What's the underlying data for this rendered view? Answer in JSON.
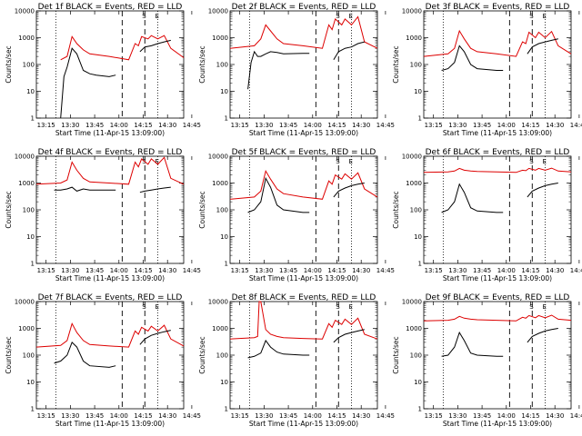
{
  "colors": {
    "events": "#000000",
    "lld": "#dd0000",
    "axis": "#000000"
  },
  "common": {
    "xlabel": "Start Time (11-Apr-15 13:09:00)",
    "ylabel": "Counts/sec",
    "x_ticks": [
      "13:15",
      "13:30",
      "13:45",
      "14:00",
      "14:15",
      "14:30",
      "14:45"
    ],
    "y_ticks": [
      "1",
      "10",
      "100",
      "1000",
      "10000"
    ]
  },
  "chart_data": [
    {
      "type": "line",
      "title": "Det 1f BLACK = Events, RED = LLD",
      "xlabel": "Start Time (11-Apr-15 13:09:00)",
      "ylabel": "Counts/sec",
      "xlim_min": [
        9,
        100
      ],
      "ylim": [
        1,
        10000
      ],
      "y_scale": "log",
      "grid": false,
      "legend": "none",
      "series": [
        {
          "name": "Events",
          "x": [
            9,
            24,
            26,
            28,
            31,
            34,
            38,
            42,
            46,
            54,
            58
          ],
          "y": [
            null,
            1,
            35,
            80,
            400,
            250,
            60,
            45,
            40,
            35,
            40
          ]
        },
        {
          "name": "LLD",
          "x": [
            9,
            24,
            28,
            31,
            34,
            38,
            42,
            54,
            66,
            70,
            72,
            74,
            78,
            80,
            84,
            88,
            92,
            100
          ],
          "y": [
            null,
            150,
            200,
            1100,
            600,
            350,
            250,
            200,
            150,
            600,
            500,
            1100,
            900,
            1200,
            900,
            1200,
            400,
            180
          ]
        },
        {
          "name": "Events",
          "x": [
            73,
            76,
            80,
            84,
            88,
            92
          ],
          "y": [
            300,
            450,
            500,
            600,
            700,
            800
          ]
        }
      ],
      "markers": {
        "dashed": [
          62,
          76
        ],
        "dotted": [
          21,
          84
        ],
        "labels": [
          "S",
          "E"
        ]
      }
    },
    {
      "type": "line",
      "title": "Det 2f BLACK = Events, RED = LLD",
      "xlabel": "Start Time (11-Apr-15 13:09:00)",
      "ylabel": "Counts/sec",
      "xlim_min": [
        9,
        100
      ],
      "ylim": [
        1,
        10000
      ],
      "y_scale": "log",
      "grid": false,
      "legend": "none",
      "series": [
        {
          "name": "Events",
          "x": [
            20,
            22,
            24,
            26,
            28,
            31,
            34,
            38,
            42,
            54,
            58
          ],
          "y": [
            12,
            120,
            300,
            200,
            200,
            250,
            300,
            280,
            250,
            260,
            260
          ]
        },
        {
          "name": "LLD",
          "x": [
            9,
            24,
            28,
            31,
            34,
            38,
            42,
            54,
            66,
            70,
            72,
            74,
            78,
            80,
            84,
            88,
            92,
            100
          ],
          "y": [
            400,
            500,
            900,
            3000,
            1800,
            900,
            600,
            500,
            400,
            3000,
            2000,
            5000,
            3000,
            5000,
            3000,
            6000,
            700,
            400
          ]
        },
        {
          "name": "Events",
          "x": [
            73,
            76,
            80,
            84,
            88,
            92
          ],
          "y": [
            150,
            300,
            400,
            450,
            600,
            700
          ]
        }
      ],
      "markers": {
        "dashed": [
          62,
          76
        ],
        "dotted": [
          21,
          84
        ],
        "labels": [
          "S",
          "E"
        ]
      }
    },
    {
      "type": "line",
      "title": "Det 3f BLACK = Events, RED = LLD",
      "xlabel": "Start Time (11-Apr-15 13:09:00)",
      "ylabel": "Counts/sec",
      "xlim_min": [
        9,
        100
      ],
      "ylim": [
        1,
        10000
      ],
      "y_scale": "log",
      "grid": false,
      "legend": "none",
      "series": [
        {
          "name": "Events",
          "x": [
            20,
            24,
            28,
            31,
            34,
            38,
            42,
            54,
            58
          ],
          "y": [
            60,
            70,
            120,
            500,
            300,
            100,
            70,
            60,
            60
          ]
        },
        {
          "name": "LLD",
          "x": [
            9,
            24,
            28,
            31,
            34,
            38,
            42,
            54,
            66,
            70,
            72,
            74,
            78,
            80,
            84,
            88,
            92,
            100
          ],
          "y": [
            200,
            250,
            400,
            1800,
            900,
            400,
            300,
            250,
            200,
            700,
            600,
            1600,
            1000,
            1600,
            1000,
            1700,
            500,
            250
          ]
        },
        {
          "name": "Events",
          "x": [
            73,
            76,
            80,
            84,
            88,
            92
          ],
          "y": [
            250,
            450,
            600,
            700,
            800,
            900
          ]
        }
      ],
      "markers": {
        "dashed": [
          62,
          76
        ],
        "dotted": [
          21,
          84
        ],
        "labels": [
          "S",
          "E"
        ]
      }
    },
    {
      "type": "line",
      "title": "Det 4f BLACK = Events, RED = LLD",
      "xlabel": "Start Time (11-Apr-15 13:09:00)",
      "ylabel": "Counts/sec",
      "xlim_min": [
        9,
        100
      ],
      "ylim": [
        1,
        10000
      ],
      "y_scale": "log",
      "grid": false,
      "legend": "none",
      "series": [
        {
          "name": "Events",
          "x": [
            20,
            24,
            28,
            31,
            34,
            38,
            42,
            54,
            58
          ],
          "y": [
            550,
            550,
            600,
            700,
            500,
            600,
            550,
            550,
            550
          ]
        },
        {
          "name": "LLD",
          "x": [
            9,
            24,
            28,
            31,
            34,
            38,
            42,
            54,
            66,
            70,
            72,
            74,
            78,
            80,
            84,
            88,
            92,
            100
          ],
          "y": [
            900,
            1000,
            1300,
            6000,
            3000,
            1500,
            1100,
            1000,
            900,
            6000,
            4000,
            8000,
            5000,
            8000,
            5000,
            9000,
            1500,
            900
          ]
        },
        {
          "name": "Events",
          "x": [
            73,
            76,
            80,
            84,
            88,
            92
          ],
          "y": [
            450,
            500,
            550,
            600,
            650,
            700
          ]
        }
      ],
      "markers": {
        "dashed": [
          62,
          76
        ],
        "dotted": [
          21,
          84
        ],
        "labels": [
          "S",
          "E"
        ]
      }
    },
    {
      "type": "line",
      "title": "Det 5f BLACK = Events, RED = LLD",
      "xlabel": "Start Time (11-Apr-15 13:09:00)",
      "ylabel": "Counts/sec",
      "xlim_min": [
        9,
        100
      ],
      "ylim": [
        1,
        10000
      ],
      "y_scale": "log",
      "grid": false,
      "legend": "none",
      "series": [
        {
          "name": "Events",
          "x": [
            20,
            24,
            28,
            31,
            34,
            38,
            42,
            54,
            58
          ],
          "y": [
            80,
            100,
            200,
            1500,
            700,
            150,
            100,
            80,
            80
          ]
        },
        {
          "name": "LLD",
          "x": [
            9,
            24,
            28,
            31,
            34,
            38,
            42,
            54,
            66,
            70,
            72,
            74,
            78,
            80,
            84,
            88,
            92,
            100
          ],
          "y": [
            250,
            300,
            500,
            2800,
            1400,
            600,
            400,
            300,
            250,
            1200,
            900,
            2000,
            1400,
            2200,
            1400,
            2400,
            600,
            300
          ]
        },
        {
          "name": "Events",
          "x": [
            73,
            76,
            80,
            84,
            88,
            92
          ],
          "y": [
            300,
            500,
            650,
            800,
            900,
            1000
          ]
        }
      ],
      "markers": {
        "dashed": [
          62,
          76
        ],
        "dotted": [
          21,
          84
        ],
        "labels": [
          "S",
          "E"
        ]
      }
    },
    {
      "type": "line",
      "title": "Det 6f BLACK = Events, RED = LLD",
      "xlabel": "Start Time (11-Apr-15 13:09:00)",
      "ylabel": "Counts/sec",
      "xlim_min": [
        9,
        100
      ],
      "ylim": [
        1,
        10000
      ],
      "y_scale": "log",
      "grid": false,
      "legend": "none",
      "series": [
        {
          "name": "Events",
          "x": [
            20,
            24,
            28,
            31,
            34,
            38,
            42,
            54,
            58
          ],
          "y": [
            80,
            100,
            200,
            900,
            450,
            120,
            90,
            80,
            80
          ]
        },
        {
          "name": "LLD",
          "x": [
            9,
            24,
            28,
            31,
            34,
            38,
            42,
            54,
            66,
            70,
            72,
            74,
            78,
            80,
            84,
            88,
            92,
            100
          ],
          "y": [
            2500,
            2600,
            2800,
            3500,
            3000,
            2800,
            2700,
            2600,
            2500,
            3000,
            2900,
            3500,
            3000,
            3500,
            3000,
            3600,
            2800,
            2600
          ]
        },
        {
          "name": "Events",
          "x": [
            73,
            76,
            80,
            84,
            88,
            92
          ],
          "y": [
            300,
            500,
            650,
            800,
            900,
            1000
          ]
        }
      ],
      "markers": {
        "dashed": [
          62,
          76
        ],
        "dotted": [
          21,
          84
        ],
        "labels": [
          "S",
          "E"
        ]
      }
    },
    {
      "type": "line",
      "title": "Det 7f BLACK = Events, RED = LLD",
      "xlabel": "Start Time (11-Apr-15 13:09:00)",
      "ylabel": "Counts/sec",
      "xlim_min": [
        9,
        100
      ],
      "ylim": [
        1,
        10000
      ],
      "y_scale": "log",
      "grid": false,
      "legend": "none",
      "series": [
        {
          "name": "Events",
          "x": [
            20,
            24,
            28,
            31,
            34,
            38,
            42,
            54,
            58
          ],
          "y": [
            50,
            60,
            100,
            300,
            200,
            60,
            40,
            35,
            40
          ]
        },
        {
          "name": "LLD",
          "x": [
            9,
            24,
            28,
            31,
            34,
            38,
            42,
            54,
            66,
            70,
            72,
            74,
            78,
            80,
            84,
            88,
            92,
            100
          ],
          "y": [
            200,
            230,
            350,
            1500,
            700,
            350,
            250,
            220,
            200,
            800,
            600,
            1100,
            800,
            1200,
            800,
            1300,
            400,
            220
          ]
        },
        {
          "name": "Events",
          "x": [
            73,
            76,
            80,
            84,
            88,
            92
          ],
          "y": [
            250,
            400,
            550,
            650,
            750,
            850
          ]
        }
      ],
      "markers": {
        "dashed": [
          62,
          76
        ],
        "dotted": [
          21,
          84
        ],
        "labels": [
          "S",
          "E"
        ]
      }
    },
    {
      "type": "line",
      "title": "Det 8f BLACK = Events, RED = LLD",
      "xlabel": "Start Time (11-Apr-15 13:09:00)",
      "ylabel": "Counts/sec",
      "xlim_min": [
        9,
        100
      ],
      "ylim": [
        1,
        10000
      ],
      "y_scale": "log",
      "grid": false,
      "legend": "none",
      "series": [
        {
          "name": "Events",
          "x": [
            20,
            24,
            28,
            31,
            34,
            38,
            42,
            54,
            58
          ],
          "y": [
            80,
            90,
            120,
            350,
            200,
            130,
            110,
            100,
            100
          ]
        },
        {
          "name": "LLD",
          "x": [
            9,
            24,
            26,
            27,
            28,
            31,
            34,
            38,
            42,
            54,
            66,
            70,
            72,
            74,
            78,
            80,
            84,
            88,
            92,
            100
          ],
          "y": [
            400,
            450,
            500,
            10000,
            10000,
            900,
            600,
            500,
            450,
            420,
            400,
            1500,
            1100,
            2000,
            1400,
            2200,
            1400,
            2400,
            600,
            400
          ]
        },
        {
          "name": "Events",
          "x": [
            73,
            76,
            80,
            84,
            88,
            92
          ],
          "y": [
            300,
            450,
            600,
            700,
            800,
            900
          ]
        }
      ],
      "markers": {
        "dashed": [
          62,
          76
        ],
        "dotted": [
          21,
          84
        ],
        "labels": [
          "S",
          "E"
        ]
      }
    },
    {
      "type": "line",
      "title": "Det 9f BLACK = Events, RED = LLD",
      "xlabel": "Start Time (11-Apr-15 13:09:00)",
      "ylabel": "Counts/sec",
      "xlim_min": [
        9,
        100
      ],
      "ylim": [
        1,
        10000
      ],
      "y_scale": "log",
      "grid": false,
      "legend": "none",
      "series": [
        {
          "name": "Events",
          "x": [
            20,
            24,
            28,
            31,
            34,
            38,
            42,
            54,
            58
          ],
          "y": [
            90,
            100,
            200,
            700,
            350,
            120,
            100,
            90,
            90
          ]
        },
        {
          "name": "LLD",
          "x": [
            9,
            24,
            28,
            31,
            34,
            38,
            42,
            54,
            66,
            70,
            72,
            74,
            78,
            80,
            84,
            88,
            92,
            100
          ],
          "y": [
            1900,
            2000,
            2200,
            2800,
            2400,
            2200,
            2100,
            2000,
            1900,
            2600,
            2400,
            3000,
            2500,
            3000,
            2500,
            3100,
            2200,
            2000
          ]
        },
        {
          "name": "Events",
          "x": [
            73,
            76,
            80,
            84,
            88,
            92
          ],
          "y": [
            300,
            500,
            650,
            800,
            900,
            1000
          ]
        }
      ],
      "markers": {
        "dashed": [
          62,
          76
        ],
        "dotted": [
          21,
          84
        ],
        "labels": [
          "S",
          "E"
        ]
      }
    }
  ]
}
